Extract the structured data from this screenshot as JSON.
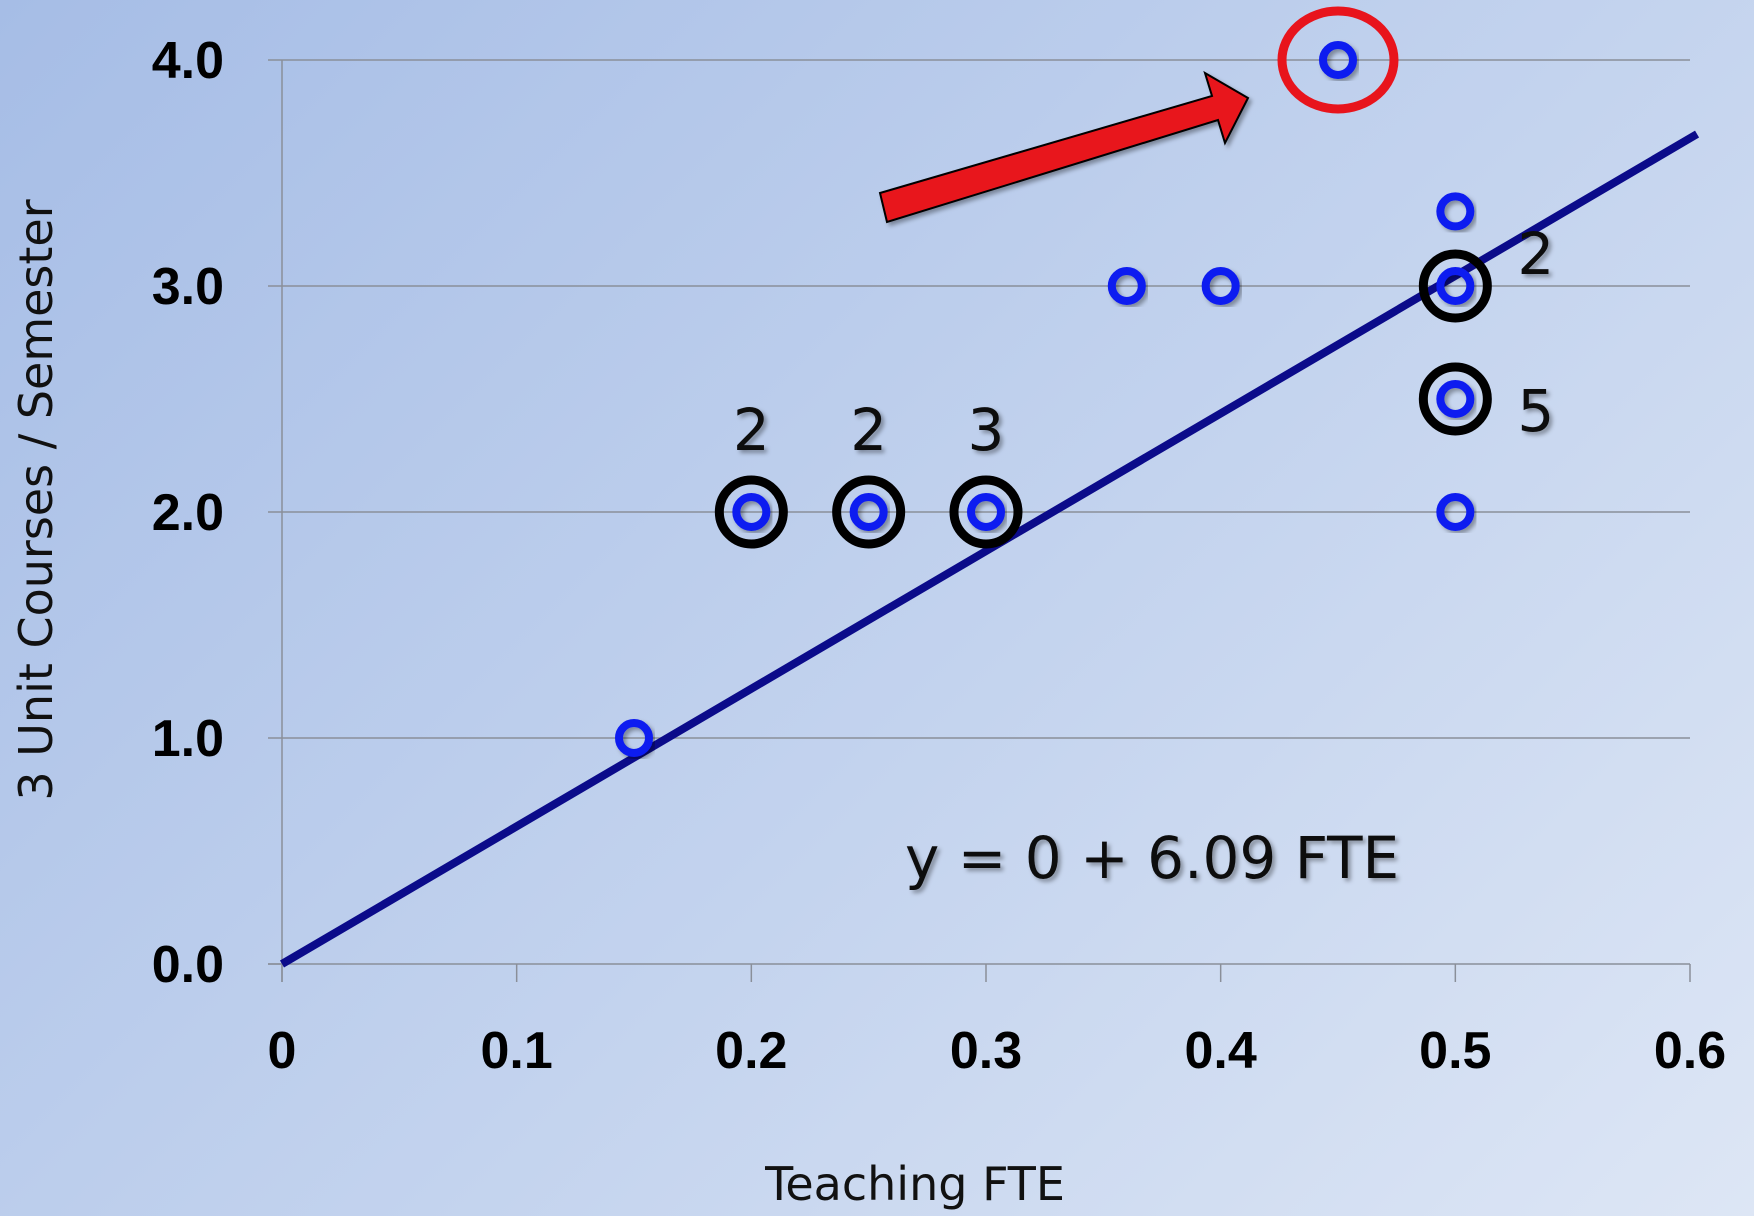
{
  "chart_data": {
    "type": "scatter",
    "title": "",
    "xlabel": "Teaching FTE",
    "ylabel": "3 Unit Courses / Semester",
    "xlim": [
      0,
      0.6
    ],
    "ylim": [
      0,
      4.0
    ],
    "x_ticks": [
      "0",
      "0.1",
      "0.2",
      "0.3",
      "0.4",
      "0.5",
      "0.6"
    ],
    "y_ticks": [
      "0.0",
      "1.0",
      "2.0",
      "3.0",
      "4.0"
    ],
    "grid": "horizontal",
    "points": [
      {
        "x": 0.15,
        "y": 1.0
      },
      {
        "x": 0.2,
        "y": 2.0
      },
      {
        "x": 0.25,
        "y": 2.0
      },
      {
        "x": 0.3,
        "y": 2.0
      },
      {
        "x": 0.36,
        "y": 3.0
      },
      {
        "x": 0.4,
        "y": 3.0
      },
      {
        "x": 0.45,
        "y": 4.0
      },
      {
        "x": 0.5,
        "y": 3.33
      },
      {
        "x": 0.5,
        "y": 3.0
      },
      {
        "x": 0.5,
        "y": 2.5
      },
      {
        "x": 0.5,
        "y": 2.0
      }
    ],
    "count_annotations": [
      {
        "x": 0.2,
        "y": 2.0,
        "count": "2"
      },
      {
        "x": 0.25,
        "y": 2.0,
        "count": "2"
      },
      {
        "x": 0.3,
        "y": 2.0,
        "count": "3"
      },
      {
        "x": 0.5,
        "y": 3.0,
        "count": "2"
      },
      {
        "x": 0.5,
        "y": 2.5,
        "count": "5"
      }
    ],
    "highlighted_point": {
      "x": 0.45,
      "y": 4.0
    },
    "fit_line": {
      "intercept": 0,
      "slope": 6.09,
      "x_range": [
        0,
        0.603
      ]
    },
    "equation": "y = 0 + 6.09 FTE",
    "colors": {
      "point": "#0a1af0",
      "fit_line": "#0b0b8a",
      "highlight": "#e8141c",
      "arrow": "#e8141c",
      "cluster_ring": "#000000",
      "grid": "#8a8f99"
    }
  }
}
